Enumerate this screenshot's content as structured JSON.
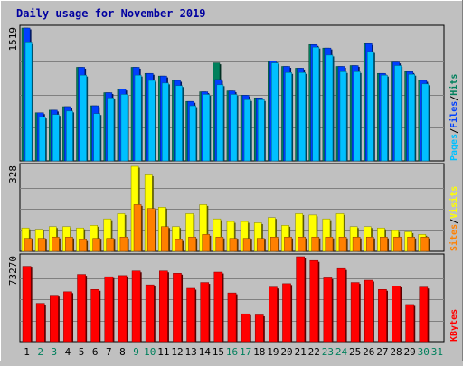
{
  "chart_data": [
    {
      "type": "bar",
      "title": "Daily usage for November 2019",
      "panel": "pages-files-hits",
      "ymax_label": "1519",
      "legend": [
        {
          "label": "Pages",
          "color": "#00c0ff"
        },
        {
          "label": "Files",
          "color": "#0040ff"
        },
        {
          "label": "Hits",
          "color": "#00805c"
        }
      ],
      "categories": [
        "1",
        "2",
        "3",
        "4",
        "5",
        "6",
        "7",
        "8",
        "9",
        "10",
        "11",
        "12",
        "13",
        "14",
        "15",
        "16",
        "17",
        "18",
        "19",
        "20",
        "21",
        "22",
        "23",
        "24",
        "25",
        "26",
        "27",
        "28",
        "29",
        "30",
        "31"
      ],
      "series": [
        {
          "name": "Hits",
          "color": "#00805c",
          "values": [
            1519,
            550,
            580,
            620,
            1070,
            630,
            780,
            820,
            1070,
            1000,
            970,
            920,
            680,
            790,
            1120,
            800,
            750,
            720,
            1140,
            1080,
            1060,
            1330,
            1290,
            1080,
            1090,
            1340,
            1000,
            1130,
            1020,
            920,
            null
          ]
        },
        {
          "name": "Files",
          "color": "#0040ff",
          "values": [
            1519,
            550,
            580,
            620,
            1070,
            630,
            780,
            820,
            1070,
            1000,
            970,
            920,
            680,
            790,
            930,
            800,
            750,
            720,
            1140,
            1080,
            1060,
            1330,
            1290,
            1080,
            1090,
            1340,
            1000,
            1130,
            1020,
            920,
            null
          ]
        },
        {
          "name": "Pages",
          "color": "#00c0ff",
          "values": [
            1350,
            500,
            530,
            570,
            980,
            540,
            720,
            760,
            980,
            920,
            890,
            860,
            630,
            760,
            870,
            760,
            700,
            700,
            1120,
            1010,
            1010,
            1300,
            1210,
            1020,
            1020,
            1250,
            980,
            1090,
            990,
            880,
            null
          ]
        }
      ]
    },
    {
      "type": "bar",
      "panel": "sites-visits",
      "ymax_label": "328",
      "legend": [
        {
          "label": "Sites",
          "color": "#ff8000"
        },
        {
          "label": "Visits",
          "color": "#ffff00"
        }
      ],
      "categories": [
        "1",
        "2",
        "3",
        "4",
        "5",
        "6",
        "7",
        "8",
        "9",
        "10",
        "11",
        "12",
        "13",
        "14",
        "15",
        "16",
        "17",
        "18",
        "19",
        "20",
        "21",
        "22",
        "23",
        "24",
        "25",
        "26",
        "27",
        "28",
        "29",
        "30",
        "31"
      ],
      "series": [
        {
          "name": "Visits",
          "color": "#ffff00",
          "values": [
            90,
            85,
            95,
            95,
            90,
            100,
            125,
            145,
            328,
            295,
            170,
            95,
            145,
            180,
            125,
            115,
            115,
            110,
            130,
            100,
            145,
            140,
            125,
            145,
            95,
            95,
            90,
            80,
            75,
            65,
            null
          ]
        },
        {
          "name": "Sites",
          "color": "#ff8000",
          "values": [
            50,
            50,
            55,
            55,
            45,
            50,
            50,
            55,
            180,
            165,
            95,
            45,
            55,
            65,
            55,
            50,
            50,
            50,
            55,
            55,
            55,
            55,
            55,
            55,
            55,
            55,
            55,
            55,
            55,
            55,
            null
          ]
        }
      ]
    },
    {
      "type": "bar",
      "panel": "kbytes",
      "ymax_label": "73270",
      "legend": [
        {
          "label": "KBytes",
          "color": "#ff0000"
        }
      ],
      "categories": [
        "1",
        "2",
        "3",
        "4",
        "5",
        "6",
        "7",
        "8",
        "9",
        "10",
        "11",
        "12",
        "13",
        "14",
        "15",
        "16",
        "17",
        "18",
        "19",
        "20",
        "21",
        "22",
        "23",
        "24",
        "25",
        "26",
        "27",
        "28",
        "29",
        "30",
        "31"
      ],
      "series": [
        {
          "name": "KBytes",
          "color": "#ff0000",
          "values": [
            65000,
            33000,
            40000,
            43000,
            58000,
            45000,
            56000,
            57000,
            61000,
            49000,
            61000,
            59000,
            46000,
            51000,
            60000,
            42000,
            24000,
            23000,
            47000,
            50000,
            73270,
            70000,
            55000,
            63000,
            51000,
            53000,
            45000,
            48000,
            32000,
            47000,
            null
          ]
        }
      ]
    }
  ],
  "day_label_colors": {
    "weekday": "#000000",
    "weekend": "#00805c"
  },
  "weekend_days": [
    "2",
    "3",
    "9",
    "10",
    "16",
    "17",
    "23",
    "24",
    "30",
    "31"
  ]
}
